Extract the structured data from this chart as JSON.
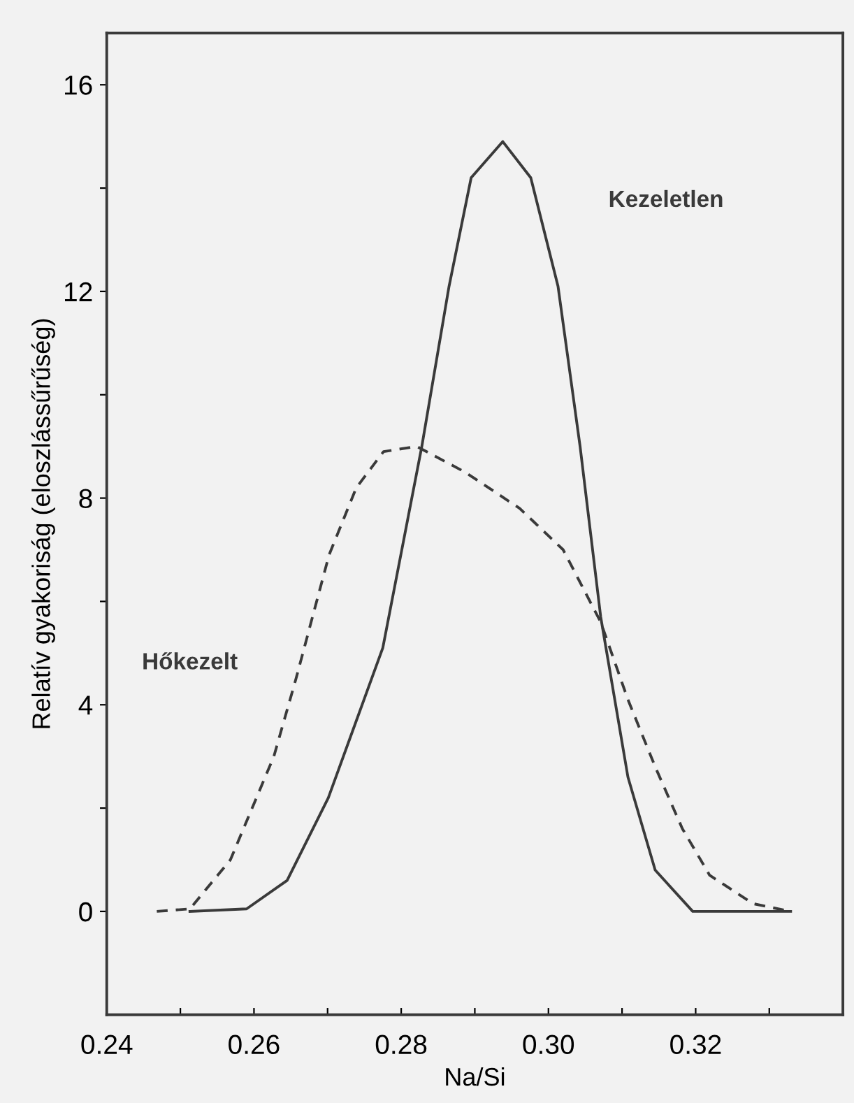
{
  "chart_data": {
    "type": "line",
    "xlabel": "Na/Si",
    "ylabel": "Relatív gyakoriság (eloszlássűrűség)",
    "xlim": [
      0.24,
      0.34
    ],
    "ylim": [
      -2,
      17
    ],
    "xticks": [
      0.24,
      {
        "value": 0.25,
        "label": null
      },
      0.26,
      {
        "value": 0.27,
        "label": null
      },
      0.28,
      {
        "value": 0.29,
        "label": null
      },
      {
        "value": 0.3,
        "label": "0.30"
      },
      {
        "value": 0.31,
        "label": null
      },
      0.32,
      {
        "value": 0.33,
        "label": null
      }
    ],
    "yticks": [
      0,
      {
        "value": 2,
        "label": null
      },
      4,
      {
        "value": 6,
        "label": null
      },
      8,
      {
        "value": 10,
        "label": null
      },
      12,
      {
        "value": 14,
        "label": null
      },
      16
    ],
    "grid": false,
    "legend": false,
    "marker": "none",
    "series": [
      {
        "name": "Kezeletlen",
        "color": "#3a3a3a",
        "line_style": "solid",
        "x": [
          0.2513,
          0.259,
          0.2645,
          0.2701,
          0.2775,
          0.2828,
          0.2865,
          0.2895,
          0.2938,
          0.2976,
          0.3013,
          0.3043,
          0.3071,
          0.3108,
          0.3145,
          0.3196,
          0.3329
        ],
        "values": [
          0,
          0.05,
          0.6,
          2.2,
          5.1,
          9.0,
          12.1,
          14.2,
          14.9,
          14.2,
          12.1,
          9.0,
          5.7,
          2.6,
          0.8,
          0,
          0
        ]
      },
      {
        "name": "Hőkezelt",
        "color": "#3a3a3a",
        "line_style": "dashed",
        "x": [
          0.2468,
          0.2513,
          0.2568,
          0.2627,
          0.2657,
          0.2702,
          0.2739,
          0.2776,
          0.2821,
          0.2887,
          0.2961,
          0.302,
          0.3071,
          0.3108,
          0.3145,
          0.3182,
          0.3219,
          0.3278,
          0.3329
        ],
        "values": [
          0,
          0.05,
          1.0,
          3.0,
          4.5,
          6.9,
          8.2,
          8.9,
          9.0,
          8.5,
          7.8,
          7.0,
          5.6,
          4.1,
          2.8,
          1.6,
          0.7,
          0.15,
          0
        ]
      }
    ]
  }
}
